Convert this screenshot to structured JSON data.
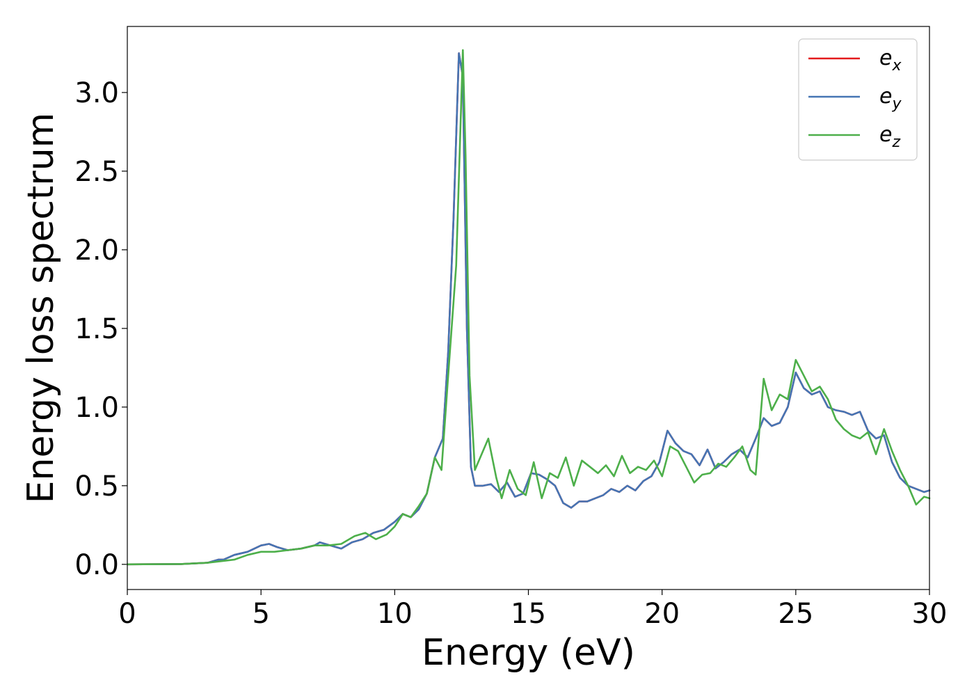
{
  "chart_data": {
    "type": "line",
    "title": "",
    "xlabel": "Energy (eV)",
    "ylabel": "Energy loss spectrum",
    "xlim": [
      0,
      30
    ],
    "ylim": [
      -0.16,
      3.42
    ],
    "xticks": [
      0,
      5,
      10,
      15,
      20,
      25,
      30
    ],
    "xtick_labels": [
      "0",
      "5",
      "10",
      "15",
      "20",
      "25",
      "30"
    ],
    "yticks": [
      0.0,
      0.5,
      1.0,
      1.5,
      2.0,
      2.5,
      3.0
    ],
    "ytick_labels": [
      "0.0",
      "0.5",
      "1.0",
      "1.5",
      "2.0",
      "2.5",
      "3.0"
    ],
    "grid": false,
    "legend_position": "top-right",
    "series": [
      {
        "name": "e_x",
        "legend_base": "e",
        "legend_sub": "x",
        "color": "#e41a1c",
        "x": [
          0,
          2,
          3,
          3.4,
          3.6,
          4,
          4.5,
          5,
          5.3,
          5.6,
          6,
          6.5,
          7,
          7.2,
          7.6,
          8,
          8.4,
          8.8,
          9.2,
          9.6,
          10,
          10.3,
          10.6,
          10.9,
          11.2,
          11.5,
          11.8,
          12.0,
          12.2,
          12.4,
          12.55,
          12.7,
          12.85,
          13.0,
          13.3,
          13.6,
          13.9,
          14.2,
          14.5,
          14.8,
          15.1,
          15.4,
          15.7,
          16.0,
          16.3,
          16.6,
          16.9,
          17.2,
          17.5,
          17.8,
          18.1,
          18.4,
          18.7,
          19.0,
          19.3,
          19.6,
          19.9,
          20.2,
          20.5,
          20.8,
          21.1,
          21.4,
          21.7,
          22.0,
          22.3,
          22.6,
          22.9,
          23.2,
          23.5,
          23.8,
          24.1,
          24.4,
          24.7,
          25.0,
          25.3,
          25.6,
          25.9,
          26.2,
          26.5,
          26.8,
          27.1,
          27.4,
          27.7,
          28.0,
          28.3,
          28.6,
          28.9,
          29.2,
          29.5,
          29.8,
          30
        ],
        "y": [
          0,
          0.002,
          0.01,
          0.03,
          0.03,
          0.06,
          0.08,
          0.12,
          0.13,
          0.11,
          0.09,
          0.1,
          0.12,
          0.14,
          0.12,
          0.1,
          0.14,
          0.16,
          0.2,
          0.22,
          0.27,
          0.32,
          0.3,
          0.35,
          0.45,
          0.68,
          0.8,
          1.35,
          2.2,
          3.25,
          3.1,
          1.5,
          0.62,
          0.5,
          0.5,
          0.51,
          0.46,
          0.52,
          0.43,
          0.45,
          0.58,
          0.57,
          0.54,
          0.5,
          0.39,
          0.36,
          0.4,
          0.4,
          0.42,
          0.44,
          0.48,
          0.46,
          0.5,
          0.47,
          0.53,
          0.56,
          0.65,
          0.85,
          0.77,
          0.72,
          0.7,
          0.63,
          0.73,
          0.61,
          0.65,
          0.7,
          0.73,
          0.68,
          0.8,
          0.93,
          0.88,
          0.9,
          1.0,
          1.22,
          1.12,
          1.08,
          1.1,
          1.0,
          0.98,
          0.97,
          0.95,
          0.97,
          0.85,
          0.8,
          0.82,
          0.65,
          0.55,
          0.5,
          0.48,
          0.46,
          0.47
        ]
      },
      {
        "name": "e_y",
        "legend_base": "e",
        "legend_sub": "y",
        "color": "#4575b4",
        "x": [
          0,
          2,
          3,
          3.4,
          3.6,
          4,
          4.5,
          5,
          5.3,
          5.6,
          6,
          6.5,
          7,
          7.2,
          7.6,
          8,
          8.4,
          8.8,
          9.2,
          9.6,
          10,
          10.3,
          10.6,
          10.9,
          11.2,
          11.5,
          11.8,
          12.0,
          12.2,
          12.4,
          12.55,
          12.7,
          12.85,
          13.0,
          13.3,
          13.6,
          13.9,
          14.2,
          14.5,
          14.8,
          15.1,
          15.4,
          15.7,
          16.0,
          16.3,
          16.6,
          16.9,
          17.2,
          17.5,
          17.8,
          18.1,
          18.4,
          18.7,
          19.0,
          19.3,
          19.6,
          19.9,
          20.2,
          20.5,
          20.8,
          21.1,
          21.4,
          21.7,
          22.0,
          22.3,
          22.6,
          22.9,
          23.2,
          23.5,
          23.8,
          24.1,
          24.4,
          24.7,
          25.0,
          25.3,
          25.6,
          25.9,
          26.2,
          26.5,
          26.8,
          27.1,
          27.4,
          27.7,
          28.0,
          28.3,
          28.6,
          28.9,
          29.2,
          29.5,
          29.8,
          30
        ],
        "y": [
          0,
          0.002,
          0.01,
          0.03,
          0.03,
          0.06,
          0.08,
          0.12,
          0.13,
          0.11,
          0.09,
          0.1,
          0.12,
          0.14,
          0.12,
          0.1,
          0.14,
          0.16,
          0.2,
          0.22,
          0.27,
          0.32,
          0.3,
          0.35,
          0.45,
          0.68,
          0.8,
          1.35,
          2.2,
          3.25,
          3.1,
          1.5,
          0.62,
          0.5,
          0.5,
          0.51,
          0.46,
          0.52,
          0.43,
          0.45,
          0.58,
          0.57,
          0.54,
          0.5,
          0.39,
          0.36,
          0.4,
          0.4,
          0.42,
          0.44,
          0.48,
          0.46,
          0.5,
          0.47,
          0.53,
          0.56,
          0.65,
          0.85,
          0.77,
          0.72,
          0.7,
          0.63,
          0.73,
          0.61,
          0.65,
          0.7,
          0.73,
          0.68,
          0.8,
          0.93,
          0.88,
          0.9,
          1.0,
          1.22,
          1.12,
          1.08,
          1.1,
          1.0,
          0.98,
          0.97,
          0.95,
          0.97,
          0.85,
          0.8,
          0.82,
          0.65,
          0.55,
          0.5,
          0.48,
          0.46,
          0.47
        ]
      },
      {
        "name": "e_z",
        "legend_base": "e",
        "legend_sub": "z",
        "color": "#4daf4a",
        "x": [
          0,
          2,
          3,
          3.5,
          4,
          4.5,
          5,
          5.5,
          6,
          6.5,
          7,
          7.5,
          8,
          8.5,
          8.9,
          9.3,
          9.7,
          10.0,
          10.3,
          10.6,
          10.9,
          11.2,
          11.5,
          11.75,
          12.0,
          12.3,
          12.55,
          12.65,
          12.8,
          13.0,
          13.2,
          13.5,
          13.8,
          14.0,
          14.3,
          14.6,
          14.9,
          15.2,
          15.5,
          15.8,
          16.1,
          16.4,
          16.7,
          17.0,
          17.3,
          17.6,
          17.9,
          18.2,
          18.5,
          18.8,
          19.1,
          19.4,
          19.7,
          20.0,
          20.3,
          20.6,
          20.9,
          21.2,
          21.5,
          21.8,
          22.1,
          22.4,
          22.7,
          23.0,
          23.3,
          23.5,
          23.8,
          24.1,
          24.4,
          24.7,
          25.0,
          25.3,
          25.6,
          25.9,
          26.2,
          26.5,
          26.8,
          27.1,
          27.4,
          27.7,
          28.0,
          28.3,
          28.6,
          28.9,
          29.2,
          29.5,
          29.8,
          30
        ],
        "y": [
          0,
          0.002,
          0.01,
          0.02,
          0.03,
          0.06,
          0.08,
          0.08,
          0.09,
          0.1,
          0.12,
          0.12,
          0.13,
          0.18,
          0.2,
          0.16,
          0.19,
          0.24,
          0.32,
          0.3,
          0.37,
          0.45,
          0.68,
          0.6,
          1.2,
          1.9,
          3.27,
          2.6,
          1.2,
          0.6,
          0.68,
          0.8,
          0.55,
          0.42,
          0.6,
          0.48,
          0.44,
          0.65,
          0.42,
          0.58,
          0.55,
          0.68,
          0.5,
          0.66,
          0.62,
          0.58,
          0.63,
          0.56,
          0.69,
          0.58,
          0.62,
          0.6,
          0.66,
          0.56,
          0.75,
          0.72,
          0.62,
          0.52,
          0.57,
          0.58,
          0.64,
          0.62,
          0.68,
          0.75,
          0.6,
          0.57,
          1.18,
          0.98,
          1.08,
          1.05,
          1.3,
          1.2,
          1.1,
          1.13,
          1.05,
          0.92,
          0.86,
          0.82,
          0.8,
          0.84,
          0.7,
          0.86,
          0.72,
          0.6,
          0.5,
          0.38,
          0.43,
          0.42
        ]
      }
    ]
  }
}
